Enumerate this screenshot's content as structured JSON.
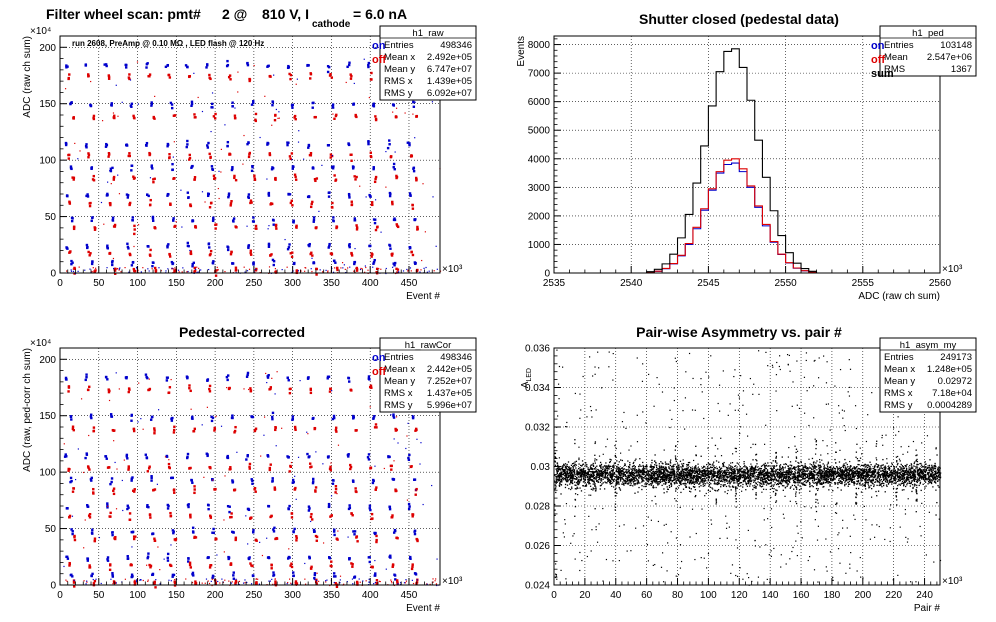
{
  "chart_data": [
    {
      "id": "p1",
      "type": "scatter",
      "title_parts": [
        "Filter wheel scan: pmt#",
        "2 @",
        "810 V, I",
        "cathode",
        "= 6.0 nA"
      ],
      "subtitle": "run 2608, PreAmp @ 0.10 MΩ , LED flash @  120 Hz",
      "xlabel": "Event #",
      "ylabel": "ADC (raw ch sum)",
      "xlim": [
        0,
        490000
      ],
      "ylim": [
        0,
        2100000
      ],
      "xticks": [
        0,
        50000,
        100000,
        150000,
        200000,
        250000,
        300000,
        350000,
        400000,
        450000
      ],
      "xtick_labels": [
        "0",
        "50",
        "100",
        "150",
        "200",
        "250",
        "300",
        "350",
        "400",
        "450"
      ],
      "yticks": [
        0,
        500000,
        1000000,
        1500000,
        2000000
      ],
      "ytick_labels": [
        "0",
        "50",
        "100",
        "150",
        "200"
      ],
      "x_exponent": "×10³",
      "y_exponent": "×10⁴",
      "grid": true,
      "legend": {
        "position": "top-right",
        "entries": [
          {
            "label": "on",
            "color": "#0000cc"
          },
          {
            "label": "off",
            "color": "#dd0000"
          }
        ]
      },
      "stats_box": {
        "name": "h1_raw",
        "rows": [
          {
            "label": "Entries",
            "value": "498346"
          },
          {
            "label": "Mean x",
            "value": "2.492e+05"
          },
          {
            "label": "Mean y",
            "value": "6.747e+07"
          },
          {
            "label": "RMS x",
            "value": "1.439e+05"
          },
          {
            "label": "RMS y",
            "value": "6.092e+07"
          }
        ]
      },
      "band_levels": [
        1850000,
        1750000,
        1500000,
        1390000,
        1150000,
        1050000,
        940000,
        850000,
        700000,
        620000,
        480000,
        420000,
        250000,
        180000,
        100000,
        30000
      ],
      "cycle_period": 26000,
      "series": [
        {
          "name": "on",
          "color": "#0000cc"
        },
        {
          "name": "off",
          "color": "#dd0000"
        }
      ]
    },
    {
      "id": "p2",
      "type": "bar",
      "title": "Shutter closed (pedestal data)",
      "xlabel": "ADC (raw ch sum)",
      "ylabel": "Events",
      "xlim": [
        2535000,
        2560000
      ],
      "ylim": [
        0,
        8300
      ],
      "xticks": [
        2535000,
        2540000,
        2545000,
        2550000,
        2555000,
        2560000
      ],
      "xtick_labels": [
        "2535",
        "2540",
        "2545",
        "2550",
        "2555",
        "2560"
      ],
      "yticks": [
        0,
        1000,
        2000,
        3000,
        4000,
        5000,
        6000,
        7000,
        8000
      ],
      "ytick_labels": [
        "0",
        "1000",
        "2000",
        "3000",
        "4000",
        "5000",
        "6000",
        "7000",
        "8000"
      ],
      "x_exponent": "×10³",
      "grid": true,
      "legend": {
        "position": "top-right",
        "entries": [
          {
            "label": "on",
            "color": "#0000cc"
          },
          {
            "label": "off",
            "color": "#dd0000"
          },
          {
            "label": "sum",
            "color": "#000000"
          }
        ]
      },
      "stats_box": {
        "name": "h1_ped",
        "rows": [
          {
            "label": "Entries",
            "value": "103148"
          },
          {
            "label": "Mean",
            "value": "2.547e+06"
          },
          {
            "label": "RMS",
            "value": "1367"
          }
        ]
      },
      "bin_edges_start": 2541000,
      "bin_width": 500,
      "series": [
        {
          "name": "on",
          "color": "#0000cc",
          "values": [
            20,
            60,
            150,
            320,
            600,
            1000,
            1550,
            2200,
            2900,
            3500,
            3800,
            3850,
            3550,
            3000,
            2300,
            1650,
            1080,
            650,
            350,
            170,
            75,
            28
          ]
        },
        {
          "name": "off",
          "color": "#dd0000",
          "values": [
            22,
            65,
            160,
            330,
            620,
            1030,
            1600,
            2250,
            2950,
            3550,
            3950,
            4000,
            3650,
            3050,
            2350,
            1700,
            1100,
            660,
            360,
            175,
            80,
            30
          ]
        },
        {
          "name": "sum",
          "color": "#000000",
          "values": [
            45,
            130,
            320,
            660,
            1230,
            2050,
            3150,
            4450,
            5850,
            7050,
            7760,
            7850,
            7200,
            6050,
            4650,
            3350,
            2180,
            1310,
            710,
            345,
            155,
            58
          ]
        }
      ]
    },
    {
      "id": "p3",
      "type": "scatter",
      "title": "Pedestal-corrected",
      "xlabel": "Event #",
      "ylabel": "ADC (raw, ped-corr ch sum)",
      "xlim": [
        0,
        490000
      ],
      "ylim": [
        0,
        2100000
      ],
      "xticks": [
        0,
        50000,
        100000,
        150000,
        200000,
        250000,
        300000,
        350000,
        400000,
        450000
      ],
      "xtick_labels": [
        "0",
        "50",
        "100",
        "150",
        "200",
        "250",
        "300",
        "350",
        "400",
        "450"
      ],
      "yticks": [
        0,
        500000,
        1000000,
        1500000,
        2000000
      ],
      "ytick_labels": [
        "0",
        "50",
        "100",
        "150",
        "200"
      ],
      "x_exponent": "×10³",
      "y_exponent": "×10⁴",
      "grid": true,
      "legend": {
        "position": "top-right",
        "entries": [
          {
            "label": "on",
            "color": "#0000cc"
          },
          {
            "label": "off",
            "color": "#dd0000"
          }
        ]
      },
      "stats_box": {
        "name": "h1_rawCor",
        "rows": [
          {
            "label": "Entries",
            "value": "498346"
          },
          {
            "label": "Mean x",
            "value": "2.442e+05"
          },
          {
            "label": "Mean y",
            "value": "7.252e+07"
          },
          {
            "label": "RMS x",
            "value": "1.437e+05"
          },
          {
            "label": "RMS y",
            "value": "5.996e+07"
          }
        ]
      },
      "band_levels": [
        1850000,
        1750000,
        1500000,
        1390000,
        1150000,
        1050000,
        940000,
        850000,
        700000,
        620000,
        480000,
        420000,
        250000,
        180000,
        100000,
        30000
      ],
      "cycle_period": 26000,
      "series": [
        {
          "name": "on",
          "color": "#0000cc"
        },
        {
          "name": "off",
          "color": "#dd0000"
        }
      ]
    },
    {
      "id": "p4",
      "type": "scatter",
      "title": "Pair-wise Asymmetry vs. pair #",
      "xlabel": "Pair #",
      "ylabel_main": "A",
      "ylabel_sub": "LED",
      "xlim": [
        0,
        250000
      ],
      "ylim": [
        0.024,
        0.036
      ],
      "xticks": [
        0,
        20000,
        40000,
        60000,
        80000,
        100000,
        120000,
        140000,
        160000,
        180000,
        200000,
        220000,
        240000
      ],
      "xtick_labels": [
        "0",
        "20",
        "40",
        "60",
        "80",
        "100",
        "120",
        "140",
        "160",
        "180",
        "200",
        "220",
        "240"
      ],
      "yticks": [
        0.024,
        0.026,
        0.028,
        0.03,
        0.032,
        0.034,
        0.036
      ],
      "ytick_labels": [
        "0.024",
        "0.026",
        "0.028",
        "0.03",
        "0.032",
        "0.034",
        "0.036"
      ],
      "x_exponent": "×10³",
      "grid": true,
      "stats_box": {
        "name": "h1_asym_my",
        "rows": [
          {
            "label": "Entries",
            "value": "249173"
          },
          {
            "label": "Mean x",
            "value": "1.248e+05"
          },
          {
            "label": "Mean y",
            "value": "0.02972"
          },
          {
            "label": "RMS x",
            "value": "7.18e+04"
          },
          {
            "label": "RMS y",
            "value": "0.0004289"
          }
        ]
      },
      "center_value": 0.0296,
      "spike_period": 13000,
      "series": [
        {
          "name": "asymmetry",
          "color": "#000000"
        }
      ]
    }
  ]
}
